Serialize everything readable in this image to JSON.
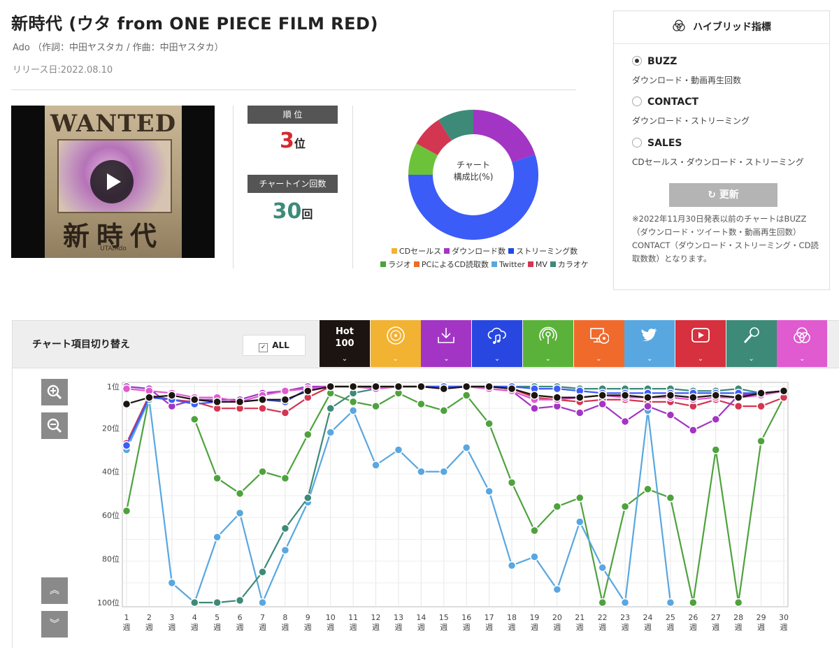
{
  "song": {
    "title": "新時代 (ウタ from ONE PIECE FILM RED)",
    "credits": "Ado （作詞：中田ヤスタカ / 作曲：中田ヤスタカ）",
    "release": "リリース日:2022.08.10"
  },
  "video": {
    "poster_title": "WANTED",
    "poster_name": "新時代",
    "poster_sub": "UTA/Ado"
  },
  "stats": {
    "rank_label": "順 位",
    "rank_value": "3",
    "rank_suffix": "位",
    "count_label": "チャートイン回数",
    "count_value": "30",
    "count_suffix": "回"
  },
  "donut": {
    "center_line1": "チャート",
    "center_line2": "構成比(%)",
    "segments": [
      {
        "name": "ダウンロード数",
        "value": 20,
        "color": "#a335c4"
      },
      {
        "name": "ストリーミング数",
        "value": 55,
        "color": "#3b5cf6"
      },
      {
        "name": "ラジオ",
        "value": 8,
        "color": "#6cc33a"
      },
      {
        "name": "MV",
        "value": 8,
        "color": "#d33651"
      },
      {
        "name": "カラオケ",
        "value": 9,
        "color": "#3d8a78"
      }
    ],
    "legend_row1": [
      {
        "label": "CDセールス",
        "color": "#f2b232"
      },
      {
        "label": "ダウンロード数",
        "color": "#a335c4"
      },
      {
        "label": "ストリーミング数",
        "color": "#1f4ae0"
      }
    ],
    "legend_row2": [
      {
        "label": "ラジオ",
        "color": "#4ea23d"
      },
      {
        "label": "PCによるCD読取数",
        "color": "#f06a2c"
      },
      {
        "label": "Twitter",
        "color": "#59a7e0"
      },
      {
        "label": "MV",
        "color": "#d33651"
      },
      {
        "label": "カラオケ",
        "color": "#3d8a78"
      }
    ]
  },
  "hybrid": {
    "heading": "ハイブリッド指標",
    "options": [
      {
        "label": "BUZZ",
        "desc": "ダウンロード・動画再生回数",
        "selected": true
      },
      {
        "label": "CONTACT",
        "desc": "ダウンロード・ストリーミング",
        "selected": false
      },
      {
        "label": "SALES",
        "desc": "CDセールス・ダウンロード・ストリーミング",
        "selected": false
      }
    ],
    "refresh_label": "更新",
    "note": "※2022年11月30日発表以前のチャートはBUZZ（ダウンロード・ツイート数・動画再生回数）CONTACT（ダウンロード・ストリーミング・CD読取数数）となります。"
  },
  "selector": {
    "label": "チャート項目切り替え",
    "all_label": "ALL",
    "tabs": [
      {
        "id": "hot100",
        "line1": "Hot",
        "line2": "100",
        "color": "#1c1410",
        "icon": "hot-100"
      },
      {
        "id": "cd",
        "color": "#f2b232",
        "icon": "cd-icon"
      },
      {
        "id": "download",
        "color": "#a335c4",
        "icon": "download-icon"
      },
      {
        "id": "streaming",
        "color": "#2747e0",
        "icon": "cloud-music-icon"
      },
      {
        "id": "radio",
        "color": "#5bb23a",
        "icon": "radio-icon"
      },
      {
        "id": "pc",
        "color": "#f06a2c",
        "icon": "pc-cd-icon"
      },
      {
        "id": "twitter",
        "color": "#59a7e0",
        "icon": "twitter-icon"
      },
      {
        "id": "mv",
        "color": "#d7303f",
        "icon": "play-icon"
      },
      {
        "id": "karaoke",
        "color": "#3d8a78",
        "icon": "microphone-icon"
      },
      {
        "id": "hybrid",
        "color": "#e05ad0",
        "icon": "hybrid-icon"
      }
    ]
  },
  "chart_data": {
    "type": "line",
    "xlabel": "",
    "ylabel": "",
    "y_reversed": true,
    "ylim": [
      100,
      1
    ],
    "yticks": [
      "1位",
      "20位",
      "40位",
      "60位",
      "80位",
      "100位"
    ],
    "x": [
      "1\n週",
      "2\n週",
      "3\n週",
      "4\n週",
      "5\n週",
      "6\n週",
      "7\n週",
      "8\n週",
      "9\n週",
      "10\n週",
      "11\n週",
      "12\n週",
      "13\n週",
      "14\n週",
      "15\n週",
      "16\n週",
      "17\n週",
      "18\n週",
      "19\n週",
      "20\n週",
      "21\n週",
      "22\n週",
      "23\n週",
      "24\n週",
      "25\n週",
      "26\n週",
      "27\n週",
      "28\n週",
      "29\n週",
      "30\n週"
    ],
    "grid": true,
    "series": [
      {
        "id": "radio",
        "color": "#4ea23d",
        "values": [
          58,
          6,
          null,
          16,
          43,
          50,
          40,
          43,
          23,
          4,
          8,
          10,
          4,
          9,
          12,
          5,
          18,
          45,
          67,
          56,
          52,
          100,
          56,
          48,
          52,
          100,
          30,
          100,
          26,
          6
        ]
      },
      {
        "id": "twitter",
        "color": "#59a7e0",
        "values": [
          30,
          7,
          91,
          100,
          70,
          59,
          100,
          76,
          54,
          22,
          12,
          37,
          30,
          40,
          40,
          29,
          49,
          83,
          79,
          94,
          63,
          84,
          100,
          12,
          100,
          null,
          null,
          null,
          null,
          null
        ]
      },
      {
        "id": "karaoke",
        "color": "#3d8a78",
        "values": [
          null,
          null,
          null,
          100,
          100,
          99,
          86,
          66,
          52,
          11,
          4,
          2,
          1,
          1,
          1,
          1,
          1,
          1,
          1,
          1,
          2,
          2,
          2,
          2,
          2,
          3,
          3,
          2,
          4,
          3
        ]
      },
      {
        "id": "mv",
        "color": "#d33651",
        "values": [
          27,
          5,
          7,
          8,
          11,
          11,
          11,
          13,
          6,
          1,
          1,
          2,
          1,
          1,
          1,
          1,
          1,
          2,
          6,
          7,
          8,
          7,
          7,
          8,
          8,
          10,
          7,
          10,
          10,
          6
        ]
      },
      {
        "id": "download",
        "color": "#a335c4",
        "values": [
          1,
          2,
          10,
          7,
          7,
          7,
          4,
          3,
          1,
          1,
          1,
          1,
          1,
          1,
          2,
          1,
          2,
          3,
          11,
          10,
          13,
          9,
          17,
          10,
          14,
          21,
          16,
          5,
          4,
          3
        ]
      },
      {
        "id": "streaming",
        "color": "#3b5cf6",
        "values": [
          28,
          6,
          7,
          9,
          8,
          8,
          7,
          8,
          2,
          1,
          1,
          1,
          1,
          1,
          1,
          1,
          1,
          1,
          2,
          2,
          3,
          4,
          4,
          4,
          4,
          4,
          4,
          4,
          4,
          3
        ]
      },
      {
        "id": "hybrid",
        "color": "#e05ad0",
        "values": [
          2,
          3,
          4,
          6,
          6,
          8,
          5,
          3,
          2,
          1,
          1,
          2,
          1,
          1,
          2,
          1,
          2,
          3,
          7,
          7,
          6,
          5,
          6,
          6,
          6,
          7,
          6,
          6,
          5,
          3
        ]
      },
      {
        "id": "hot100",
        "color": "#1c1410",
        "values": [
          9,
          6,
          5,
          7,
          8,
          8,
          7,
          7,
          3,
          1,
          1,
          1,
          1,
          1,
          2,
          1,
          1,
          2,
          5,
          6,
          6,
          5,
          5,
          6,
          5,
          6,
          5,
          6,
          4,
          3
        ]
      }
    ]
  }
}
